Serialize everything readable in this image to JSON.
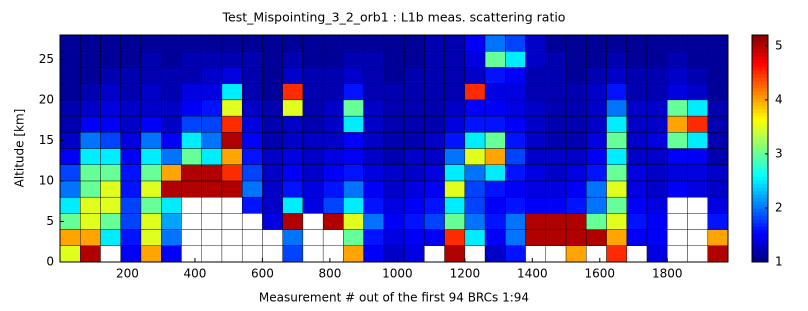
{
  "chart_data": {
    "type": "heatmap",
    "title": "Test_Mispointing_3_2_orb1 : L1b meas. scattering ratio",
    "x_label": "Measurement # out of the first 94 BRCs 1:94",
    "y_label": "Altitude [km]",
    "colormap": "jet",
    "xlim": [
      0,
      1980
    ],
    "ylim": [
      0,
      28
    ],
    "xticks": [
      200,
      400,
      600,
      800,
      1000,
      1200,
      1400,
      1600,
      1800
    ],
    "yticks": [
      0,
      5,
      10,
      15,
      20,
      25
    ],
    "clim": [
      1,
      5.2
    ],
    "colorbar_ticks": [
      1,
      2,
      3,
      4,
      5
    ],
    "x": [
      30,
      90,
      150,
      210,
      270,
      330,
      390,
      450,
      510,
      570,
      630,
      690,
      750,
      810,
      870,
      930,
      990,
      1050,
      1110,
      1170,
      1230,
      1290,
      1350,
      1410,
      1470,
      1530,
      1590,
      1650,
      1710,
      1770,
      1830,
      1890,
      1950
    ],
    "y": [
      1,
      3,
      5,
      7,
      9,
      11,
      13,
      15,
      17,
      19,
      21,
      23,
      25,
      27
    ],
    "z": [
      [
        3.5,
        5,
        null,
        1.5,
        4,
        1.5,
        null,
        null,
        null,
        null,
        null,
        1.8,
        null,
        null,
        4,
        1.5,
        1.3,
        1.4,
        null,
        5,
        null,
        1.3,
        1.6,
        null,
        null,
        4,
        null,
        4.5,
        null,
        1.4,
        null,
        null,
        5
      ],
      [
        4,
        4,
        2.5,
        1.6,
        3.5,
        2,
        null,
        null,
        null,
        null,
        null,
        2,
        null,
        null,
        3,
        1.6,
        1.4,
        1.5,
        1.5,
        4.5,
        2.5,
        1.5,
        2,
        5,
        5,
        5,
        5,
        4,
        1.5,
        1.5,
        null,
        null,
        4
      ],
      [
        3,
        3.5,
        3,
        1.8,
        3.5,
        2.2,
        null,
        null,
        null,
        null,
        1.4,
        5,
        null,
        5,
        3.5,
        2,
        1.5,
        1.6,
        1.8,
        3,
        2,
        1.6,
        2,
        5,
        5,
        5,
        3,
        3.5,
        1.6,
        1.5,
        null,
        null,
        1.6
      ],
      [
        2.5,
        3.5,
        3.5,
        1.8,
        3,
        2.5,
        null,
        null,
        null,
        1.6,
        1.3,
        2.5,
        1.4,
        1.8,
        2.5,
        1.6,
        1.4,
        1.5,
        1.6,
        2.5,
        1.8,
        1.5,
        1.6,
        1.5,
        1.5,
        1.6,
        2,
        3,
        1.5,
        1.4,
        null,
        null,
        1.4
      ],
      [
        2,
        3,
        3.5,
        1.6,
        3.5,
        5,
        5,
        5,
        5,
        2,
        1.3,
        1.6,
        1.4,
        1.6,
        2,
        1.5,
        1.3,
        1.4,
        1.5,
        3.5,
        1.8,
        1.6,
        1.5,
        1.4,
        1.4,
        1.5,
        2,
        3.5,
        1.4,
        1.3,
        1.5,
        1.4,
        1.3
      ],
      [
        1.8,
        3,
        3,
        1.6,
        3,
        4,
        5,
        5,
        4.5,
        1.8,
        1.3,
        1.5,
        1.3,
        1.5,
        1.6,
        1.4,
        1.3,
        1.3,
        1.4,
        2.5,
        2,
        2.5,
        1.6,
        1.4,
        1.3,
        1.4,
        1.6,
        3,
        1.4,
        1.3,
        1.4,
        1.4,
        1.3
      ],
      [
        1.5,
        2.5,
        2.5,
        1.5,
        2.5,
        2,
        3,
        2.5,
        4,
        1.6,
        1.3,
        1.4,
        1.3,
        1.4,
        1.5,
        1.3,
        1.2,
        1.3,
        1.3,
        2,
        3.5,
        4,
        1.8,
        1.3,
        1.3,
        1.3,
        1.5,
        2.5,
        1.3,
        1.3,
        1.5,
        1.5,
        1.2
      ],
      [
        1.3,
        2,
        1.8,
        1.4,
        2,
        1.5,
        2.5,
        2,
        5,
        1.5,
        1.2,
        1.3,
        1.3,
        1.3,
        1.5,
        1.3,
        1.2,
        1.2,
        1.3,
        1.6,
        2.5,
        3,
        1.6,
        1.3,
        1.2,
        1.2,
        1.4,
        3,
        1.3,
        1.4,
        3,
        2.5,
        1.2
      ],
      [
        1.2,
        1.5,
        1.5,
        1.3,
        1.5,
        1.3,
        1.8,
        1.8,
        4.5,
        1.4,
        1.2,
        1.3,
        1.2,
        1.3,
        2.5,
        1.3,
        1.2,
        1.2,
        1.2,
        1.4,
        1.6,
        1.6,
        1.5,
        1.3,
        1.2,
        1.2,
        1.3,
        2.5,
        1.3,
        1.3,
        4,
        4.5,
        1.2
      ],
      [
        1.2,
        1.3,
        1.4,
        1.3,
        1.3,
        1.3,
        1.5,
        1.6,
        3.5,
        1.3,
        1.2,
        3.5,
        1.2,
        1.3,
        3,
        1.3,
        1.2,
        1.2,
        1.2,
        1.3,
        1.5,
        1.5,
        1.4,
        1.3,
        1.2,
        1.2,
        1.3,
        2,
        1.3,
        1.3,
        3,
        2.5,
        1.2
      ],
      [
        1.1,
        1.2,
        1.3,
        1.2,
        1.3,
        1.2,
        1.4,
        1.4,
        2.5,
        1.2,
        1.1,
        4.5,
        1.2,
        1.2,
        1.6,
        1.2,
        1.2,
        1.2,
        1.2,
        1.2,
        4.5,
        1.4,
        1.4,
        1.2,
        1.2,
        1.2,
        1.3,
        1.6,
        1.2,
        1.2,
        1.4,
        1.3,
        1.1
      ],
      [
        1.1,
        1.1,
        1.2,
        1.2,
        1.2,
        1.2,
        1.2,
        1.3,
        1.4,
        1.2,
        1.1,
        1.3,
        1.2,
        1.2,
        1.3,
        1.2,
        1.1,
        1.2,
        1.2,
        1.2,
        1.3,
        1.6,
        1.5,
        1.2,
        1.2,
        1.1,
        1.2,
        1.3,
        1.2,
        1.2,
        1.3,
        1.2,
        1.1
      ],
      [
        1.1,
        1.1,
        1.1,
        1.1,
        1.2,
        1.1,
        1.2,
        1.2,
        1.2,
        1.2,
        1.1,
        1.2,
        1.1,
        1.1,
        1.2,
        1.2,
        1.1,
        1.1,
        1.2,
        1.2,
        1.4,
        3,
        2.5,
        1.3,
        1.2,
        1.1,
        1.1,
        1.2,
        1.1,
        1.1,
        1.2,
        1.1,
        1.1
      ],
      [
        1.1,
        1.1,
        1.1,
        1.1,
        1.1,
        1.1,
        1.1,
        1.1,
        1.1,
        1.1,
        1.1,
        1.1,
        1.1,
        1.1,
        1.1,
        1.1,
        1.1,
        1.1,
        1.2,
        1.2,
        1.5,
        2,
        1.8,
        1.3,
        1.1,
        1.1,
        1.1,
        1.1,
        1.1,
        1.1,
        1.1,
        1.1,
        1.1
      ]
    ]
  }
}
